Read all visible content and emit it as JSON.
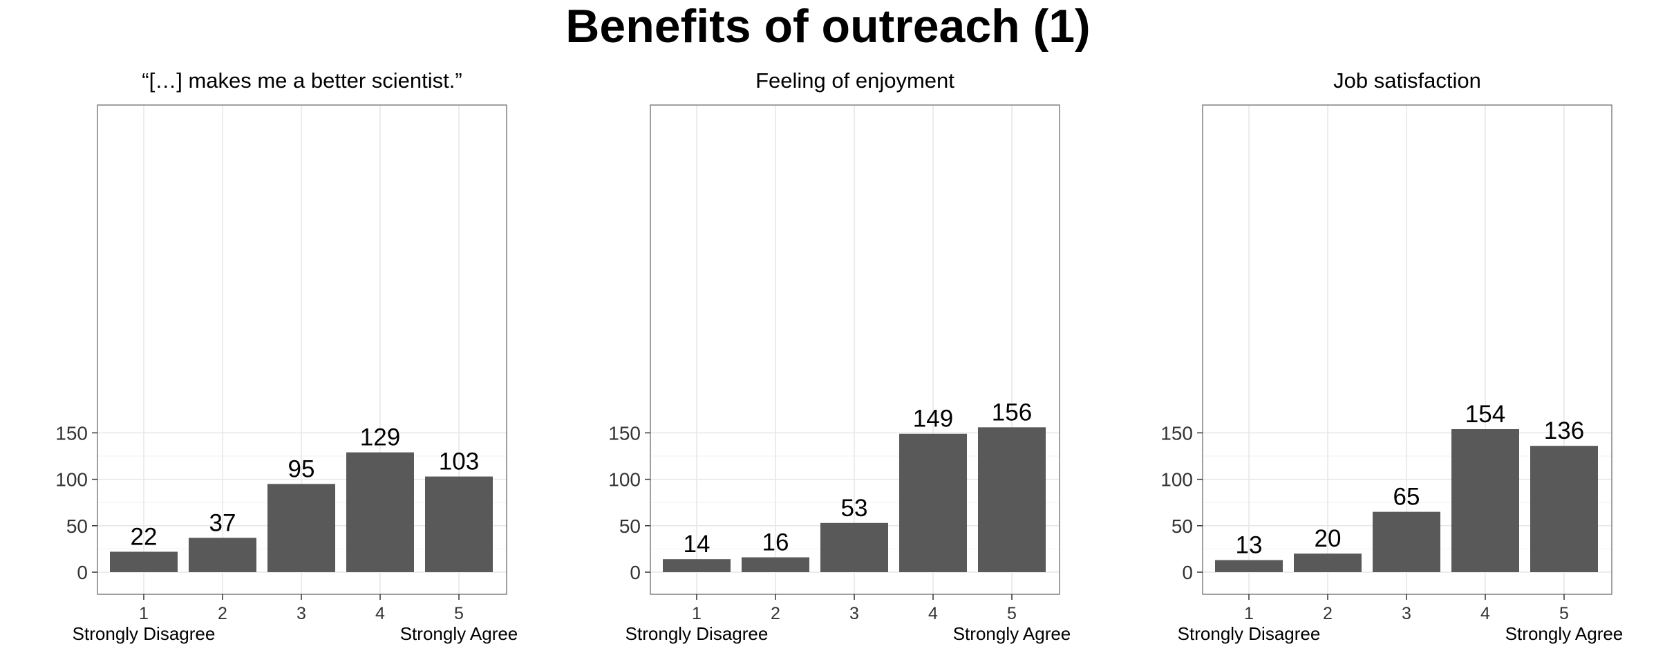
{
  "title": "Benefits of outreach (1)",
  "chart_data": [
    {
      "type": "bar",
      "title": "“[…] makes me a better scientist.”",
      "categories": [
        "1",
        "2",
        "3",
        "4",
        "5"
      ],
      "values": [
        22,
        37,
        95,
        129,
        103
      ],
      "ylim": [
        0,
        170
      ],
      "yticks": [
        0,
        50,
        100,
        150
      ],
      "x_end_labels": [
        "Strongly Disagree",
        "Strongly Agree"
      ],
      "bar_color": "#595959",
      "grid": true
    },
    {
      "type": "bar",
      "title": "Feeling of enjoyment",
      "categories": [
        "1",
        "2",
        "3",
        "4",
        "5"
      ],
      "values": [
        14,
        16,
        53,
        149,
        156
      ],
      "ylim": [
        0,
        170
      ],
      "yticks": [
        0,
        50,
        100,
        150
      ],
      "x_end_labels": [
        "Strongly Disagree",
        "Strongly Agree"
      ],
      "bar_color": "#595959",
      "grid": true
    },
    {
      "type": "bar",
      "title": "Job satisfaction",
      "categories": [
        "1",
        "2",
        "3",
        "4",
        "5"
      ],
      "values": [
        13,
        20,
        65,
        154,
        136
      ],
      "ylim": [
        0,
        170
      ],
      "yticks": [
        0,
        50,
        100,
        150
      ],
      "x_end_labels": [
        "Strongly Disagree",
        "Strongly Agree"
      ],
      "bar_color": "#595959",
      "grid": true
    }
  ]
}
